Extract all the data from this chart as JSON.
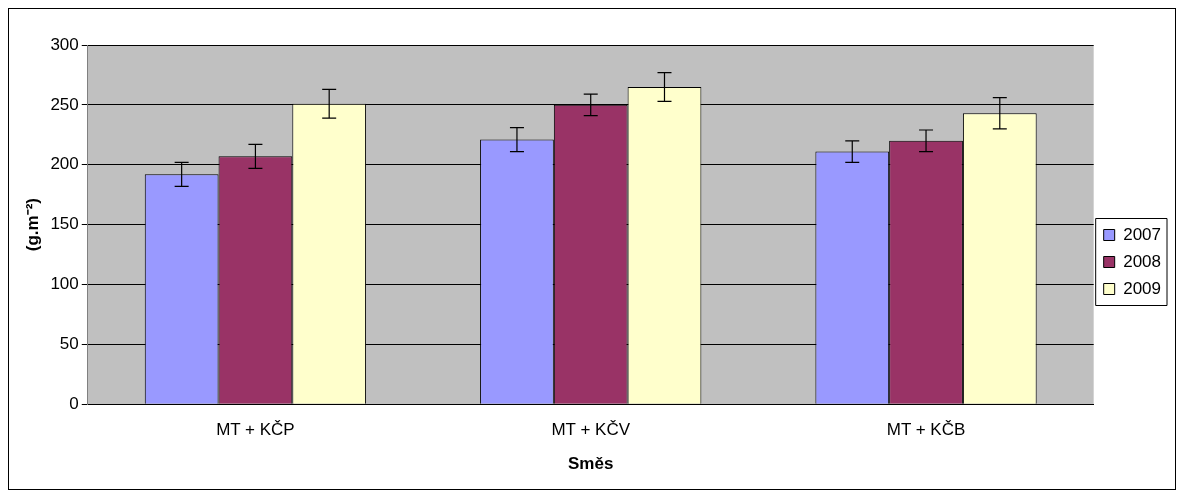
{
  "chart_data": {
    "type": "bar",
    "xlabel": "Směs",
    "ylabel": "(g.m⁻²)",
    "categories": [
      "MT + KČP",
      "MT + KČV",
      "MT + KČB"
    ],
    "series": [
      {
        "name": "2007",
        "color": "#9999ff",
        "values": [
          192,
          221,
          211
        ],
        "errors": [
          10,
          10,
          9
        ]
      },
      {
        "name": "2008",
        "color": "#993366",
        "values": [
          207,
          250,
          220
        ],
        "errors": [
          10,
          9,
          9
        ]
      },
      {
        "name": "2009",
        "color": "#ffffcc",
        "values": [
          251,
          265,
          243
        ],
        "errors": [
          12,
          12,
          13
        ]
      }
    ],
    "ylim": [
      0,
      300
    ],
    "yticks": [
      0,
      50,
      100,
      150,
      200,
      250,
      300
    ],
    "grid": "y",
    "legend": "right"
  }
}
